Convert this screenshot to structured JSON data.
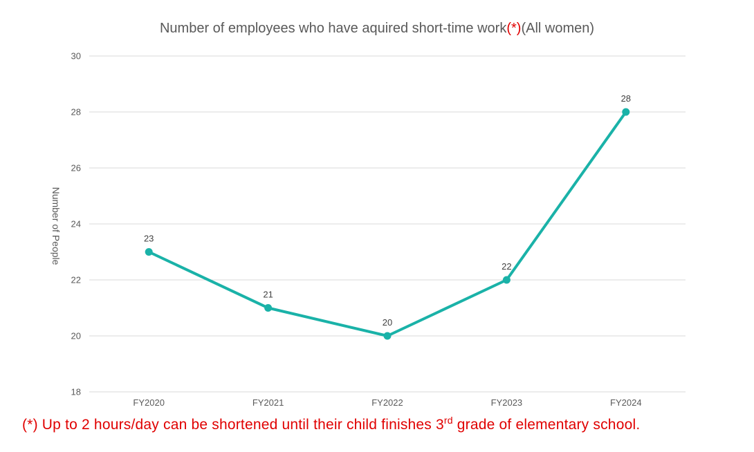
{
  "chart_data": {
    "type": "line",
    "title": "Number of employees who have aquired short-time work",
    "title_mark": "(*)",
    "title_suffix": "(All women)",
    "xlabel": "",
    "ylabel": "Number of People",
    "categories": [
      "FY2020",
      "FY2021",
      "FY2022",
      "FY2023",
      "FY2024"
    ],
    "series": [
      {
        "values": [
          23,
          21,
          20,
          22,
          28
        ],
        "color": "#1ab2a8"
      }
    ],
    "data_labels": [
      "23",
      "21",
      "20",
      "22",
      "28"
    ],
    "ylim": [
      18,
      30
    ],
    "yticks": [
      18,
      20,
      22,
      24,
      26,
      28,
      30
    ],
    "grid": true,
    "legend": "none"
  },
  "footnote": {
    "prefix": "(*) Up to 2 hours/day can be shortened until their child finishes 3",
    "sup": "rd",
    "suffix": " grade of elementary school."
  },
  "colors": {
    "line": "#1ab2a8",
    "gridline": "#d9d9d9",
    "note": "#e00000"
  }
}
